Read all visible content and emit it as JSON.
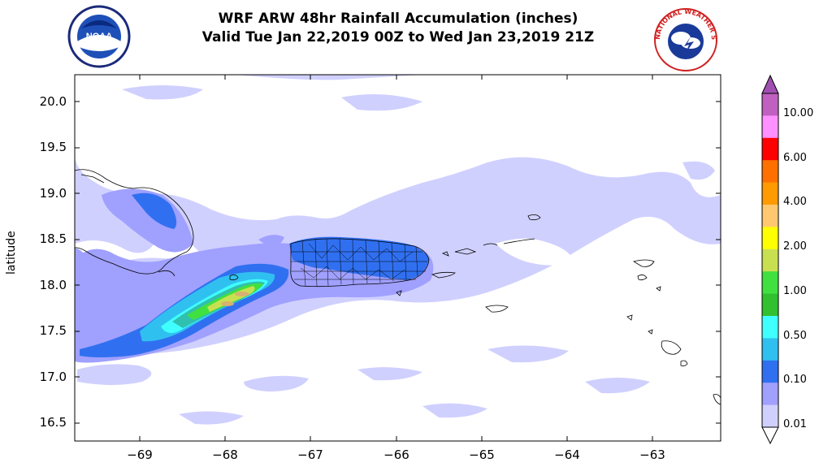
{
  "title_line1": "WRF ARW 48hr Rainfall Accumulation (inches)",
  "title_line2": "Valid Tue Jan 22,2019 00Z to Wed Jan 23,2019 21Z",
  "logos": [
    {
      "name": "noaa-logo",
      "text": "NOAA"
    },
    {
      "name": "nws-logo",
      "text": "NATIONAL WEATHER SERVICE"
    }
  ],
  "y_axis_label": "latitude",
  "y_ticks": [
    "20.0",
    "19.5",
    "19.0",
    "18.5",
    "18.0",
    "17.5",
    "17.0",
    "16.5"
  ],
  "x_ticks": [
    "−69",
    "−68",
    "−67",
    "−66",
    "−65",
    "−64",
    "−63"
  ],
  "colorbar": {
    "labels": [
      "10.00",
      "6.00",
      "4.00",
      "2.00",
      "1.00",
      "0.50",
      "0.10",
      "0.01"
    ],
    "colors": [
      "#c060c0",
      "#ff90ff",
      "#ff0000",
      "#ff7000",
      "#ff9a00",
      "#ffc870",
      "#ffff00",
      "#c8e050",
      "#40e040",
      "#30c030",
      "#40ffff",
      "#30c0f0",
      "#3070f0",
      "#a0a0ff",
      "#d0d0ff"
    ]
  },
  "map": {
    "lon_range": [
      -69.75,
      -62.2
    ],
    "lat_range": [
      16.3,
      20.3
    ]
  }
}
